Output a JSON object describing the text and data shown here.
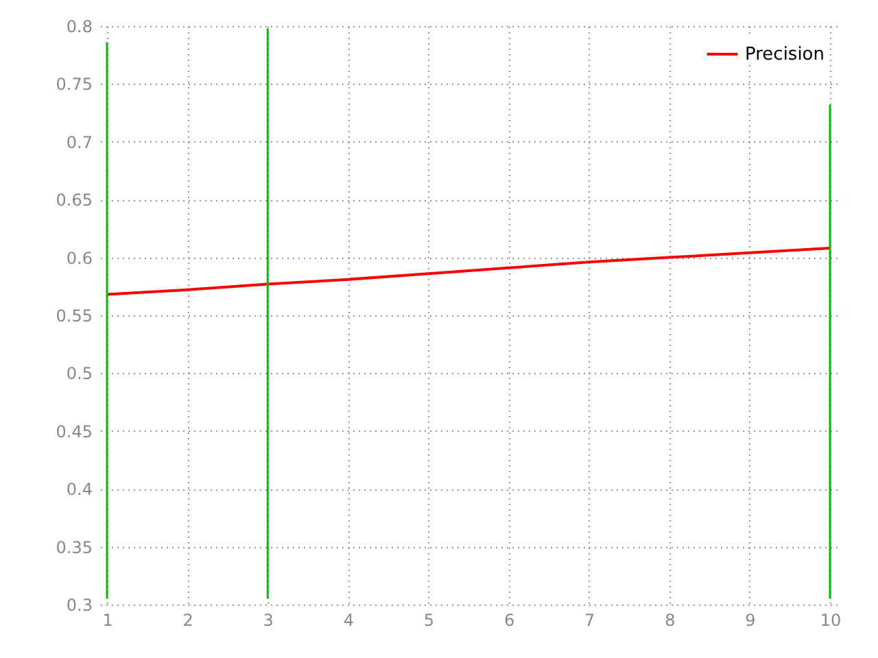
{
  "chart_data": {
    "type": "line",
    "x": [
      1,
      2,
      3,
      4,
      5,
      6,
      7,
      8,
      9,
      10
    ],
    "series": [
      {
        "name": "Precision",
        "color": "#ff0000",
        "values": [
          0.568,
          0.572,
          0.577,
          0.581,
          0.586,
          0.591,
          0.596,
          0.6,
          0.604,
          0.608
        ]
      },
      {
        "type": "bar",
        "color": "#00c000",
        "x": [
          1,
          3,
          10
        ],
        "base": [
          0.305,
          0.305,
          0.305
        ],
        "values": [
          0.481,
          0.493,
          0.427
        ]
      }
    ],
    "xlim": [
      1,
      10
    ],
    "xticks": [
      1,
      2,
      3,
      4,
      5,
      6,
      7,
      8,
      9,
      10
    ],
    "ylim": [
      0.3,
      0.8
    ],
    "yticks": [
      0.3,
      0.35,
      0.4,
      0.45,
      0.5,
      0.55,
      0.6,
      0.65,
      0.7,
      0.75,
      0.8
    ],
    "grid": true,
    "legend": "top right",
    "marker": "none",
    "line_style": "solid"
  }
}
